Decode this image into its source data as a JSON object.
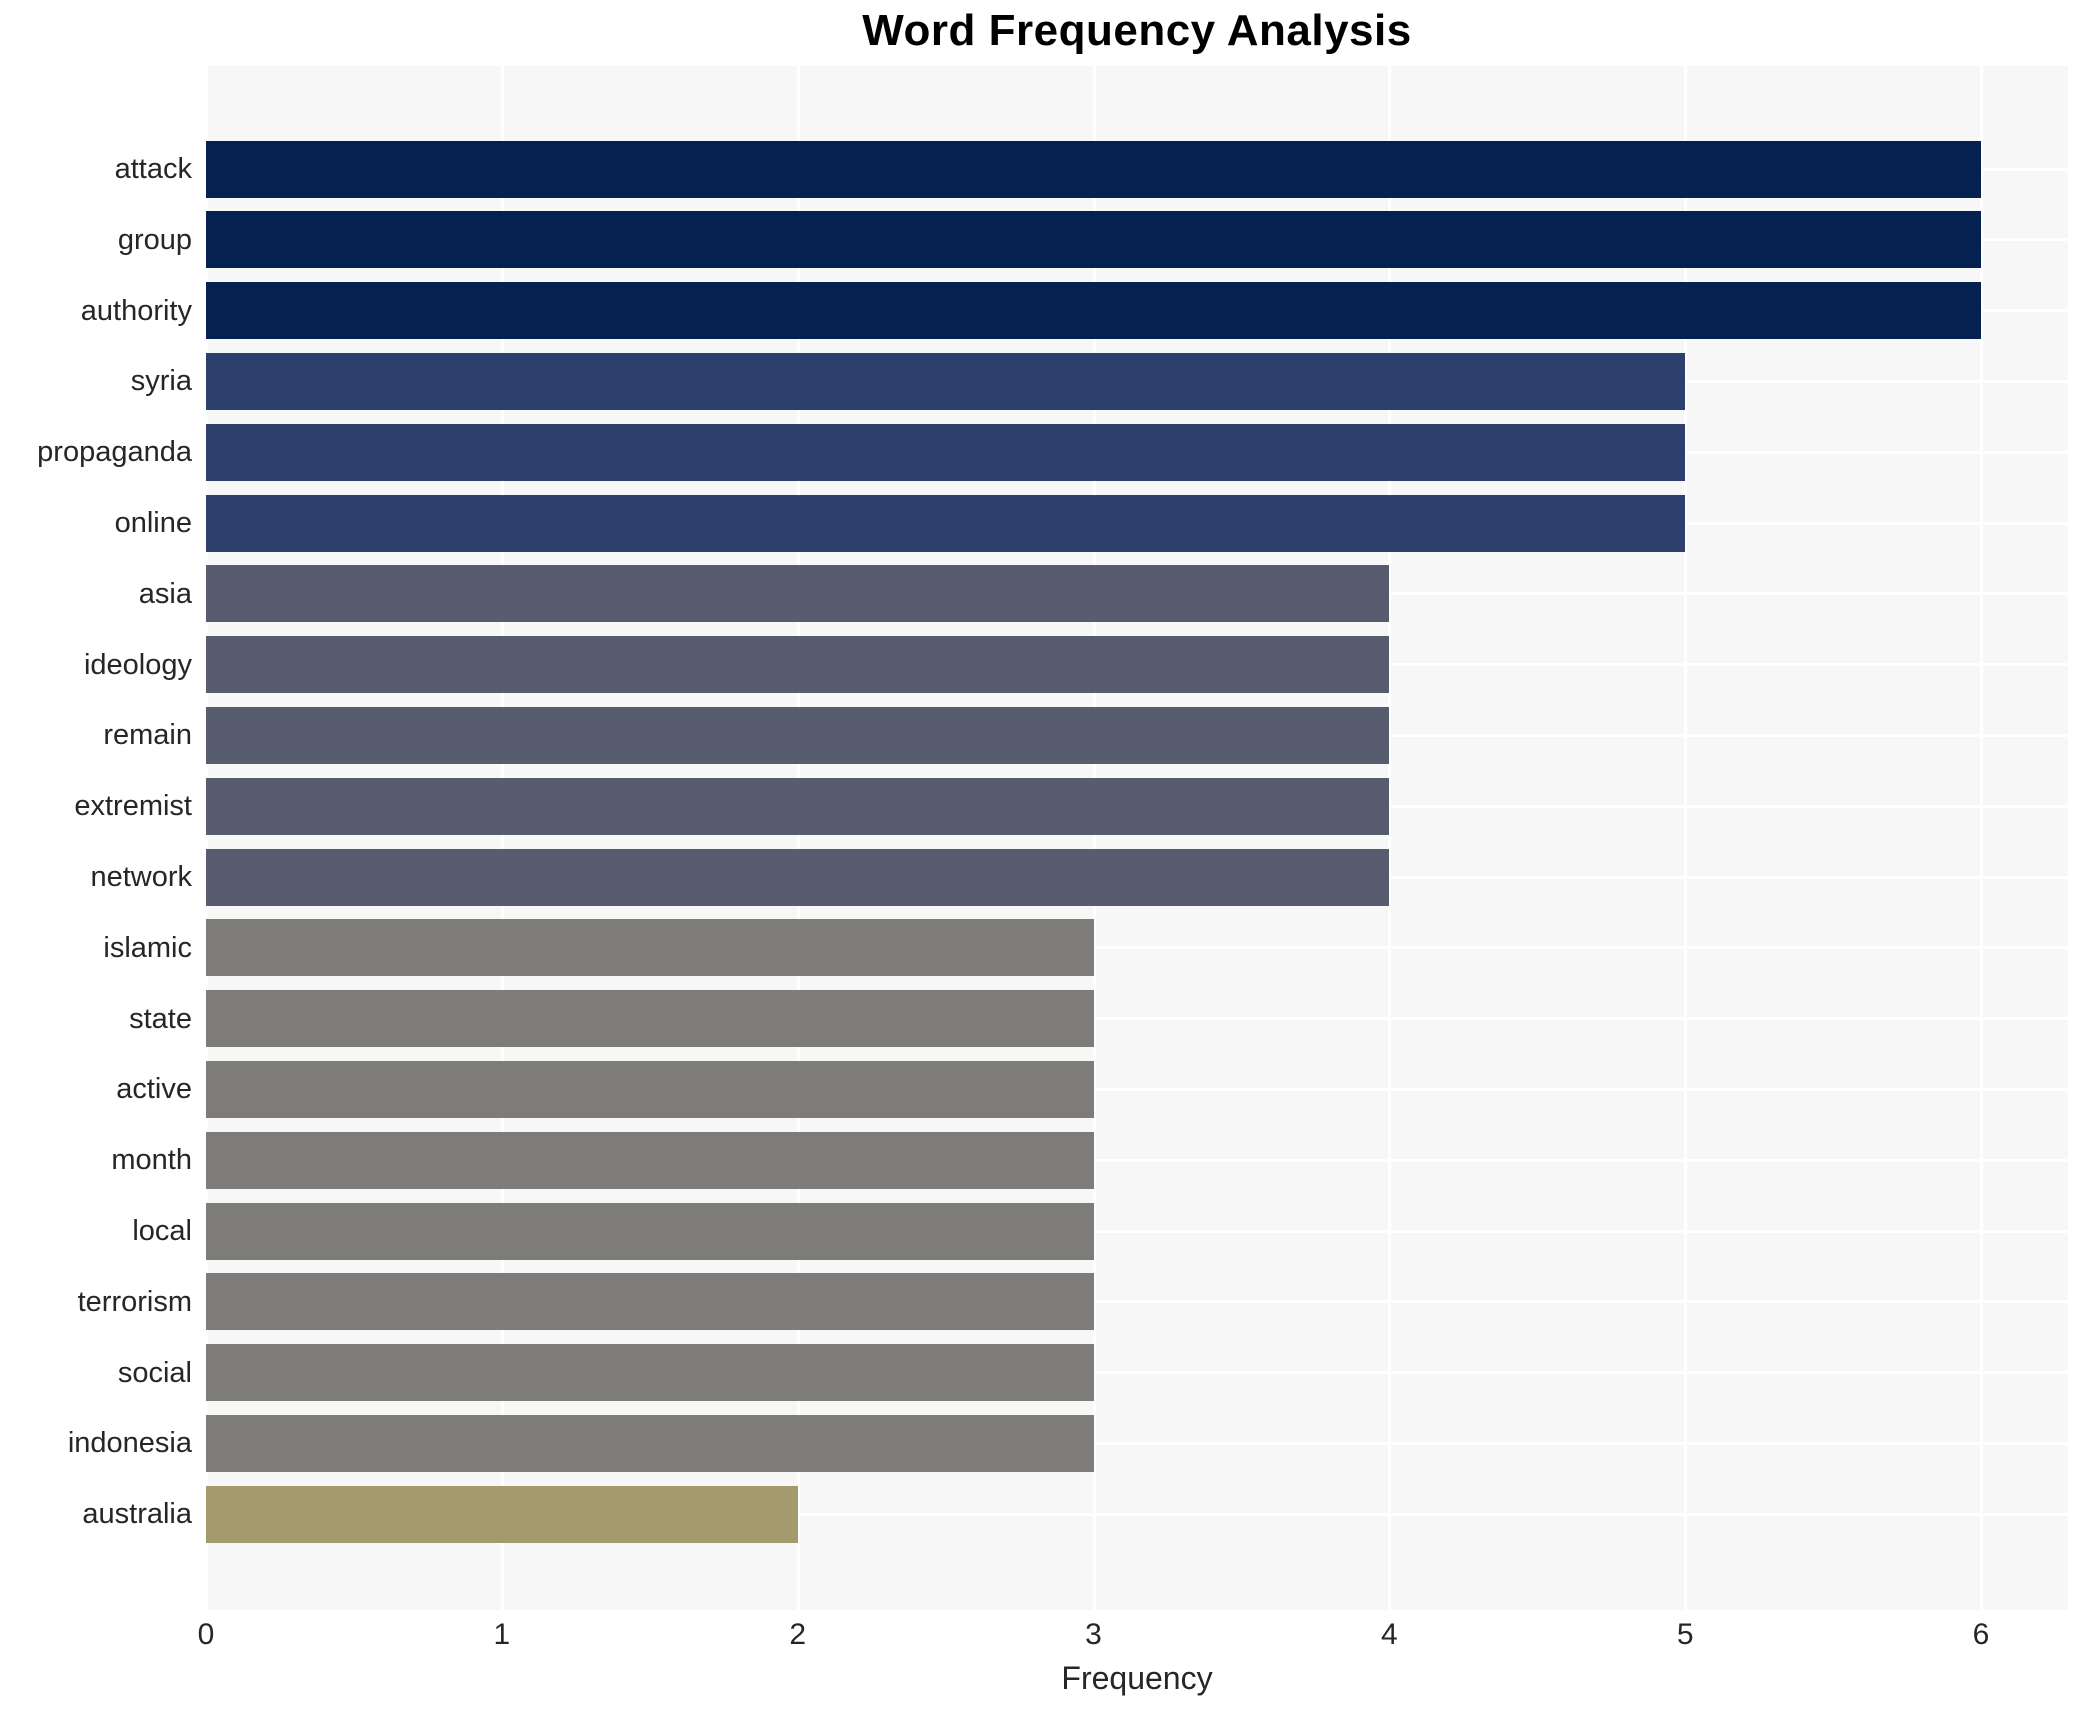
{
  "chart": {
    "title": "Word Frequency Analysis",
    "xlabel": "Frequency"
  },
  "chart_data": {
    "type": "bar",
    "orientation": "horizontal",
    "title": "Word Frequency Analysis",
    "xlabel": "Frequency",
    "ylabel": "",
    "categories": [
      "attack",
      "group",
      "authority",
      "syria",
      "propaganda",
      "online",
      "asia",
      "ideology",
      "remain",
      "extremist",
      "network",
      "islamic",
      "state",
      "active",
      "month",
      "local",
      "terrorism",
      "social",
      "indonesia",
      "australia"
    ],
    "values": [
      6,
      6,
      6,
      5,
      5,
      5,
      4,
      4,
      4,
      4,
      4,
      3,
      3,
      3,
      3,
      3,
      3,
      3,
      3,
      2
    ],
    "bar_colors": [
      "#052150",
      "#052150",
      "#052150",
      "#2d406d",
      "#2d406d",
      "#2d406d",
      "#575d6e",
      "#575d6e",
      "#575d6e",
      "#575d6e",
      "#575d6e",
      "#7d7c78",
      "#7d7c78",
      "#7d7c78",
      "#7d7c78",
      "#7d7c78",
      "#7d7c78",
      "#7d7c78",
      "#7d7c78",
      "#a39a6e"
    ],
    "xlim": [
      0,
      6
    ],
    "xticks": [
      0,
      1,
      2,
      3,
      4,
      5,
      6
    ],
    "grid": true,
    "legend": false,
    "plot_bg_color": "#f7f7f7",
    "grid_color": "#ffffff",
    "text_color": "#262626",
    "title_color": "#000000"
  }
}
